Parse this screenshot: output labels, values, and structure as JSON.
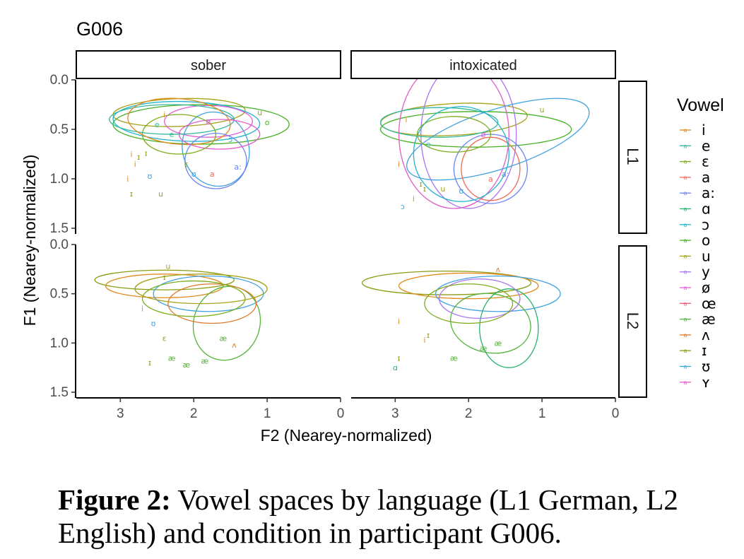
{
  "caption": {
    "label": "Figure 2:",
    "text": " Vowel spaces by language (L1 German, L2 English) and condition in participant G006."
  },
  "chart_data": {
    "type": "scatter",
    "title": "G006",
    "xlabel": "F2 (Nearey-normalized)",
    "ylabel": "F1 (Nearey-normalized)",
    "xlim": [
      0,
      3.6
    ],
    "x_reversed": true,
    "ylim": [
      0,
      1.55
    ],
    "y_reversed": true,
    "xticks": [
      3,
      2,
      1,
      0
    ],
    "yticks": [
      0.0,
      0.5,
      1.0,
      1.5
    ],
    "ytick_labels": [
      "0.0",
      "0.5",
      "1.0",
      "1.5"
    ],
    "xtick_labels": [
      "3",
      "2",
      "1",
      "0"
    ],
    "facet_cols": [
      "sober",
      "intoxicated"
    ],
    "facet_rows": [
      "L1",
      "L2"
    ],
    "grid": false,
    "legend_title": "Vowel",
    "legend_position": "right",
    "vowels": [
      {
        "v": "i",
        "color": "#E18A1E"
      },
      {
        "v": "e",
        "color": "#35B79A"
      },
      {
        "v": "ɛ",
        "color": "#7BAE1C"
      },
      {
        "v": "a",
        "color": "#EF6A58"
      },
      {
        "v": "a:",
        "color": "#6E83F2"
      },
      {
        "v": "ɑ",
        "color": "#27B36B"
      },
      {
        "v": "ɔ",
        "color": "#22B3D1"
      },
      {
        "v": "o",
        "color": "#45B022"
      },
      {
        "v": "u",
        "color": "#A7A21A"
      },
      {
        "v": "y",
        "color": "#A874F2"
      },
      {
        "v": "ø",
        "color": "#E15ED4"
      },
      {
        "v": "œ",
        "color": "#E8587A"
      },
      {
        "v": "æ",
        "color": "#55B43A"
      },
      {
        "v": "ʌ",
        "color": "#DD7A2A"
      },
      {
        "v": "ɪ",
        "color": "#8E9A12"
      },
      {
        "v": "ʊ",
        "color": "#3FA2E0"
      },
      {
        "v": "ʏ",
        "color": "#E25BC8"
      }
    ],
    "panels": [
      {
        "col": "sober",
        "row": "L1",
        "ellipses": [
          {
            "vowel": "u",
            "cx": 2.2,
            "cy": 0.33,
            "rx": 0.9,
            "ry": 0.14,
            "angle": -2
          },
          {
            "vowel": "o",
            "cx": 1.9,
            "cy": 0.45,
            "rx": 1.2,
            "ry": 0.2,
            "angle": 0
          },
          {
            "vowel": "ɔ",
            "cx": 2.1,
            "cy": 0.42,
            "rx": 1.0,
            "ry": 0.2,
            "angle": 2
          },
          {
            "vowel": "ø",
            "cx": 1.8,
            "cy": 0.42,
            "rx": 0.6,
            "ry": 0.16,
            "angle": 0
          },
          {
            "vowel": "e",
            "cx": 2.3,
            "cy": 0.4,
            "rx": 0.85,
            "ry": 0.15,
            "angle": 0
          },
          {
            "vowel": "i",
            "cx": 2.2,
            "cy": 0.42,
            "rx": 0.7,
            "ry": 0.23,
            "angle": 5
          },
          {
            "vowel": "ʊ",
            "cx": 1.7,
            "cy": 0.7,
            "rx": 0.45,
            "ry": 0.38,
            "angle": -20
          },
          {
            "vowel": "a:",
            "cx": 1.7,
            "cy": 0.82,
            "rx": 0.42,
            "ry": 0.28,
            "angle": 0
          },
          {
            "vowel": "ʏ",
            "cx": 1.65,
            "cy": 0.55,
            "rx": 0.55,
            "ry": 0.15,
            "angle": 0
          },
          {
            "vowel": "ɛ",
            "cx": 2.2,
            "cy": 0.55,
            "rx": 0.5,
            "ry": 0.2,
            "angle": 0
          }
        ],
        "points": [
          {
            "vowel": "i",
            "x": 2.9,
            "y": 1.0
          },
          {
            "vowel": "i",
            "x": 2.85,
            "y": 0.75
          },
          {
            "vowel": "ɪ",
            "x": 2.75,
            "y": 0.78
          },
          {
            "vowel": "i",
            "x": 2.8,
            "y": 0.85
          },
          {
            "vowel": "ɪ",
            "x": 2.65,
            "y": 0.74
          },
          {
            "vowel": "ʊ",
            "x": 2.6,
            "y": 0.97
          },
          {
            "vowel": "ɪ",
            "x": 2.85,
            "y": 1.15
          },
          {
            "vowel": "u",
            "x": 2.45,
            "y": 1.15
          },
          {
            "vowel": "e",
            "x": 2.5,
            "y": 0.45
          },
          {
            "vowel": "e",
            "x": 2.3,
            "y": 0.55
          },
          {
            "vowel": "i",
            "x": 2.4,
            "y": 0.35
          },
          {
            "vowel": "u",
            "x": 1.1,
            "y": 0.33
          },
          {
            "vowel": "o",
            "x": 1.0,
            "y": 0.43
          },
          {
            "vowel": "a",
            "x": 1.75,
            "y": 0.95
          },
          {
            "vowel": "a:",
            "x": 1.4,
            "y": 0.88
          },
          {
            "vowel": "ʊ",
            "x": 2.0,
            "y": 0.95
          },
          {
            "vowel": "ɛ",
            "x": 2.1,
            "y": 0.85
          },
          {
            "vowel": "ɔ",
            "x": 1.5,
            "y": 0.6
          },
          {
            "vowel": "ø",
            "x": 1.8,
            "y": 0.42
          }
        ]
      },
      {
        "col": "intoxicated",
        "row": "L1",
        "ellipses": [
          {
            "vowel": "u",
            "cx": 2.2,
            "cy": 0.4,
            "rx": 1.0,
            "ry": 0.16,
            "angle": -3
          },
          {
            "vowel": "o",
            "cx": 1.9,
            "cy": 0.5,
            "rx": 1.3,
            "ry": 0.18,
            "angle": 0
          },
          {
            "vowel": "ʏ",
            "cx": 2.2,
            "cy": 0.55,
            "rx": 0.75,
            "ry": 0.75,
            "angle": 0
          },
          {
            "vowel": "y",
            "cx": 2.0,
            "cy": 0.55,
            "rx": 0.65,
            "ry": 0.75,
            "angle": 0
          },
          {
            "vowel": "ʊ",
            "cx": 1.6,
            "cy": 0.6,
            "rx": 1.3,
            "ry": 0.3,
            "angle": -18
          },
          {
            "vowel": "a:",
            "cx": 1.7,
            "cy": 0.9,
            "rx": 0.5,
            "ry": 0.35,
            "angle": 0
          },
          {
            "vowel": "a",
            "cx": 1.7,
            "cy": 0.9,
            "rx": 0.4,
            "ry": 0.32,
            "angle": 0
          },
          {
            "vowel": "e",
            "cx": 2.4,
            "cy": 0.43,
            "rx": 0.8,
            "ry": 0.15,
            "angle": 0
          },
          {
            "vowel": "ɔ",
            "cx": 2.1,
            "cy": 0.75,
            "rx": 0.65,
            "ry": 0.48,
            "angle": 15
          },
          {
            "vowel": "ɛ",
            "cx": 2.2,
            "cy": 0.55,
            "rx": 0.5,
            "ry": 0.18,
            "angle": 0
          }
        ],
        "points": [
          {
            "vowel": "i",
            "x": 2.95,
            "y": 0.85
          },
          {
            "vowel": "ɪ",
            "x": 2.65,
            "y": 1.05
          },
          {
            "vowel": "ɪ",
            "x": 2.6,
            "y": 1.1
          },
          {
            "vowel": "i",
            "x": 2.75,
            "y": 1.2
          },
          {
            "vowel": "ɔ",
            "x": 2.9,
            "y": 1.28
          },
          {
            "vowel": "u",
            "x": 2.35,
            "y": 1.1
          },
          {
            "vowel": "ʊ",
            "x": 2.1,
            "y": 1.12
          },
          {
            "vowel": "i",
            "x": 2.85,
            "y": 0.4
          },
          {
            "vowel": "u",
            "x": 1.0,
            "y": 0.3
          },
          {
            "vowel": "a",
            "x": 1.7,
            "y": 1.0
          },
          {
            "vowel": "a:",
            "x": 1.5,
            "y": 0.95
          },
          {
            "vowel": "e",
            "x": 2.55,
            "y": 0.65
          },
          {
            "vowel": "ø",
            "x": 1.8,
            "y": 0.55
          }
        ]
      },
      {
        "col": "sober",
        "row": "L2",
        "ellipses": [
          {
            "vowel": "ɪ",
            "cx": 2.4,
            "cy": 0.36,
            "rx": 0.95,
            "ry": 0.1,
            "angle": 0
          },
          {
            "vowel": "i",
            "cx": 2.4,
            "cy": 0.42,
            "rx": 0.8,
            "ry": 0.12,
            "angle": 0
          },
          {
            "vowel": "ʊ",
            "cx": 1.8,
            "cy": 0.5,
            "rx": 0.75,
            "ry": 0.18,
            "angle": 0
          },
          {
            "vowel": "æ",
            "cx": 1.55,
            "cy": 0.8,
            "rx": 0.45,
            "ry": 0.38,
            "angle": 20
          },
          {
            "vowel": "ʌ",
            "cx": 1.75,
            "cy": 0.6,
            "rx": 0.6,
            "ry": 0.2,
            "angle": 0
          },
          {
            "vowel": "ɛ",
            "cx": 2.0,
            "cy": 0.55,
            "rx": 0.7,
            "ry": 0.18,
            "angle": 0
          },
          {
            "vowel": "u",
            "cx": 1.9,
            "cy": 0.45,
            "rx": 0.9,
            "ry": 0.15,
            "angle": 0
          }
        ],
        "points": [
          {
            "vowel": "ɪ",
            "x": 2.6,
            "y": 1.2
          },
          {
            "vowel": "æ",
            "x": 2.3,
            "y": 1.15
          },
          {
            "vowel": "æ",
            "x": 2.1,
            "y": 1.22
          },
          {
            "vowel": "æ",
            "x": 1.85,
            "y": 1.18
          },
          {
            "vowel": "i",
            "x": 2.7,
            "y": 0.65
          },
          {
            "vowel": "ʊ",
            "x": 2.55,
            "y": 0.8
          },
          {
            "vowel": "ɛ",
            "x": 2.4,
            "y": 0.95
          },
          {
            "vowel": "ʌ",
            "x": 1.45,
            "y": 1.02
          },
          {
            "vowel": "ɪ",
            "x": 2.4,
            "y": 0.33
          },
          {
            "vowel": "u",
            "x": 2.35,
            "y": 0.22
          },
          {
            "vowel": "æ",
            "x": 1.6,
            "y": 0.95
          }
        ]
      },
      {
        "col": "intoxicated",
        "row": "L2",
        "ellipses": [
          {
            "vowel": "ɪ",
            "cx": 2.3,
            "cy": 0.39,
            "rx": 1.15,
            "ry": 0.12,
            "angle": 0
          },
          {
            "vowel": "i",
            "cx": 2.0,
            "cy": 0.42,
            "rx": 0.95,
            "ry": 0.13,
            "angle": 0
          },
          {
            "vowel": "ʊ",
            "cx": 1.6,
            "cy": 0.5,
            "rx": 0.85,
            "ry": 0.18,
            "angle": 0
          },
          {
            "vowel": "æ",
            "cx": 1.7,
            "cy": 0.8,
            "rx": 0.55,
            "ry": 0.3,
            "angle": 10
          },
          {
            "vowel": "ɑ",
            "cx": 1.45,
            "cy": 0.85,
            "rx": 0.4,
            "ry": 0.4,
            "angle": 0
          },
          {
            "vowel": "y",
            "cx": 1.85,
            "cy": 0.55,
            "rx": 0.55,
            "ry": 0.2,
            "angle": 0
          },
          {
            "vowel": "ɛ",
            "cx": 2.0,
            "cy": 0.6,
            "rx": 0.6,
            "ry": 0.2,
            "angle": 0
          }
        ],
        "points": [
          {
            "vowel": "i",
            "x": 2.95,
            "y": 0.78
          },
          {
            "vowel": "ɪ",
            "x": 2.55,
            "y": 0.92
          },
          {
            "vowel": "i",
            "x": 2.6,
            "y": 0.97
          },
          {
            "vowel": "ɑ",
            "x": 3.0,
            "y": 1.25
          },
          {
            "vowel": "æ",
            "x": 2.2,
            "y": 1.15
          },
          {
            "vowel": "ɪ",
            "x": 2.95,
            "y": 1.15
          },
          {
            "vowel": "ʌ",
            "x": 1.6,
            "y": 0.25
          },
          {
            "vowel": "æ",
            "x": 1.8,
            "y": 1.05
          },
          {
            "vowel": "æ",
            "x": 1.6,
            "y": 1.0
          }
        ]
      }
    ]
  }
}
